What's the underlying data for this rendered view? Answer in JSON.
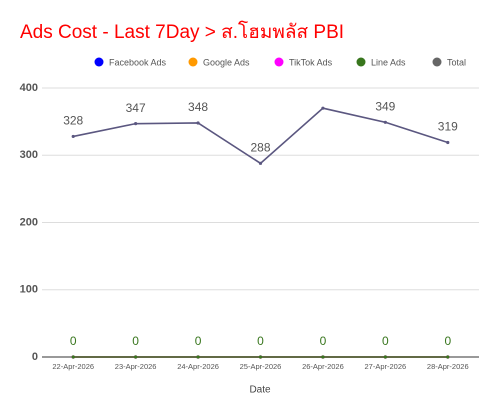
{
  "chart_data": {
    "type": "line",
    "title": "Ads Cost - Last 7Day > ส.โฮมพลัส PBI",
    "x_label": "Date",
    "categories": [
      "22-Apr-2026",
      "23-Apr-2026",
      "24-Apr-2026",
      "25-Apr-2026",
      "26-Apr-2026",
      "27-Apr-2026",
      "28-Apr-2026"
    ],
    "series": [
      {
        "name": "Facebook Ads",
        "color": "#0000ff",
        "values": [
          0,
          0,
          0,
          0,
          0,
          0,
          0
        ],
        "data_labels": false
      },
      {
        "name": "Google Ads",
        "color": "#ff9900",
        "values": [
          0,
          0,
          0,
          0,
          0,
          0,
          0
        ],
        "data_labels": false
      },
      {
        "name": "TikTok Ads",
        "color": "#ff00ff",
        "values": [
          0,
          0,
          0,
          0,
          0,
          0,
          0
        ],
        "data_labels": false
      },
      {
        "name": "Line Ads",
        "color": "#38761d",
        "values": [
          0,
          0,
          0,
          0,
          0,
          0,
          0
        ],
        "data_labels": true
      },
      {
        "name": "Total",
        "color": "#5b5780",
        "legend_color": "#666666",
        "values": [
          328,
          347,
          348,
          288,
          370,
          349,
          319
        ],
        "value_labels": [
          "328",
          "347",
          "348",
          "288",
          null,
          "349",
          "319"
        ],
        "data_labels": true
      }
    ],
    "ylim": [
      0,
      400
    ],
    "yticks": [
      0,
      100,
      200,
      300,
      400
    ],
    "grid": true,
    "title_color": "#ff0000"
  }
}
